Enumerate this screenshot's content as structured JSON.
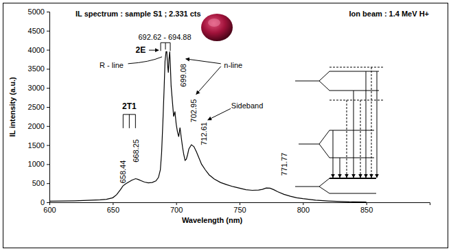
{
  "chart_data": {
    "type": "line",
    "title": "IL spectrum : sample S1 ; 2.331 cts",
    "subtitle": "Ion beam : 1.4 MeV H+",
    "x_label": "Wavelength (nm)",
    "y_label": "IL intensity (a.u.)",
    "xlim": [
      600,
      900
    ],
    "xticks": [
      600,
      650,
      700,
      750,
      800,
      850
    ],
    "ylim": [
      0,
      5000
    ],
    "yticks": [
      0,
      500,
      1000,
      1500,
      2000,
      2500,
      3000,
      3500,
      4000,
      4500,
      5000
    ],
    "grid": false,
    "x": [
      600,
      610,
      620,
      630,
      640,
      645,
      650,
      653,
      656,
      658,
      660,
      662,
      665,
      668,
      670,
      672,
      675,
      678,
      681,
      684,
      686,
      687.5,
      688.5,
      689.5,
      690.5,
      691.2,
      692,
      692.6,
      693.2,
      693.8,
      694.3,
      694.9,
      695.5,
      696,
      697,
      698,
      699,
      700,
      701,
      702,
      703,
      704,
      705,
      706,
      707,
      708,
      709,
      710,
      712,
      714,
      716,
      718,
      720,
      723,
      726,
      730,
      735,
      740,
      745,
      750,
      755,
      760,
      765,
      768,
      771,
      774,
      777,
      780,
      785,
      790,
      795,
      800,
      810,
      820,
      830,
      840,
      850
    ],
    "series": [
      {
        "color": "#000000",
        "values": [
          30,
          35,
          40,
          50,
          65,
          80,
          120,
          200,
          330,
          430,
          480,
          520,
          580,
          620,
          600,
          570,
          530,
          510,
          520,
          560,
          650,
          850,
          1300,
          2100,
          3000,
          3700,
          3950,
          3950,
          3600,
          3400,
          3750,
          3950,
          3500,
          3050,
          2650,
          2250,
          2380,
          2050,
          1850,
          1720,
          1960,
          1700,
          1450,
          1250,
          1100,
          1130,
          1250,
          1400,
          1510,
          1460,
          1320,
          1160,
          1000,
          850,
          720,
          610,
          520,
          460,
          410,
          370,
          330,
          315,
          320,
          340,
          375,
          370,
          330,
          280,
          210,
          160,
          120,
          95,
          55,
          35,
          20,
          10,
          5
        ]
      }
    ],
    "annotations": [
      {
        "text": "692.62 - 694.88",
        "x": 691,
        "y": 4330
      },
      {
        "text": "2E",
        "x": 672,
        "y": 3990
      },
      {
        "text": "R - line",
        "x": 649,
        "y": 3600
      },
      {
        "text": "n-line",
        "x": 745,
        "y": 3600
      },
      {
        "text": "Sideband",
        "x": 756,
        "y": 2530
      },
      {
        "text": "2T1",
        "x": 663,
        "y": 2520
      },
      {
        "text": "658.44",
        "x": 658.2,
        "y": 800
      },
      {
        "text": "668.25",
        "x": 668.5,
        "y": 1350
      },
      {
        "text": "699.08",
        "x": 705.4,
        "y": 3330
      },
      {
        "text": "702.95",
        "x": 713.6,
        "y": 2400
      },
      {
        "text": "712.61",
        "x": 721.7,
        "y": 1800
      },
      {
        "text": "771.77",
        "x": 785.3,
        "y": 1000
      }
    ]
  }
}
